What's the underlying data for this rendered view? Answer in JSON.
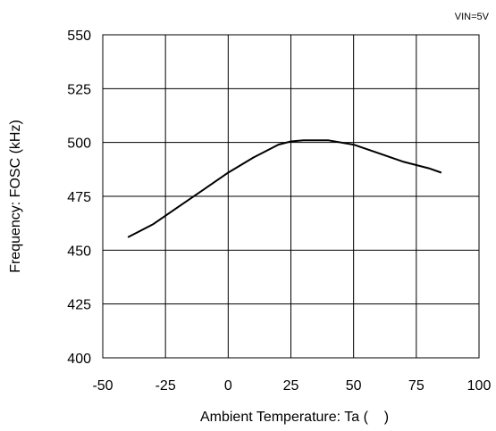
{
  "chart_data": {
    "type": "line",
    "condition": "VIN=5V",
    "xlabel": "Ambient Temperature: Ta (    )",
    "ylabel": "Frequency: FOSC (kHz)",
    "xlim": [
      -50,
      100
    ],
    "ylim": [
      400,
      550
    ],
    "xticks": [
      -50,
      -25,
      0,
      25,
      50,
      75,
      100
    ],
    "yticks": [
      400,
      425,
      450,
      475,
      500,
      525,
      550
    ],
    "xtick_labels": [
      "-50",
      "-25",
      "0",
      "25",
      "50",
      "75",
      "100"
    ],
    "ytick_labels": [
      "400",
      "425",
      "450",
      "475",
      "500",
      "525",
      "550"
    ],
    "grid": true,
    "series": [
      {
        "x": [
          -40,
          -30,
          -20,
          -10,
          0,
          10,
          20,
          25,
          30,
          40,
          50,
          60,
          70,
          80,
          85
        ],
        "values": [
          456,
          462,
          470,
          478,
          486,
          493,
          499,
          500.5,
          501,
          501,
          499,
          495,
          491,
          488,
          486
        ]
      }
    ]
  }
}
